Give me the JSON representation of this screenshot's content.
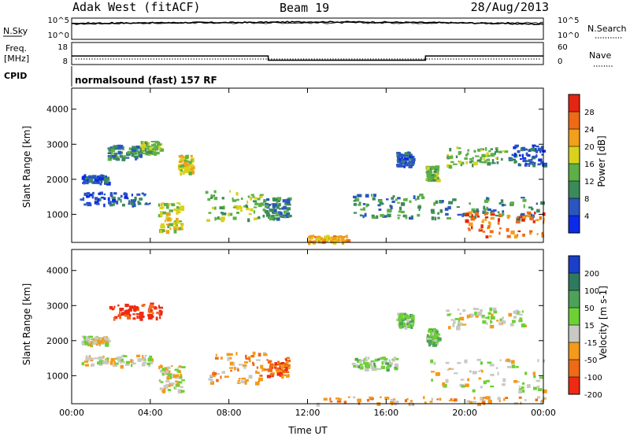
{
  "header": {
    "station": "Adak West (fitACF)",
    "beam": "Beam 19",
    "date": "28/Aug/2013"
  },
  "side_labels": {
    "nsky": "N.Sky",
    "freq_line1": "Freq.",
    "freq_line2": "[MHz]",
    "cpid": "CPID",
    "nsearch": "N.Search",
    "nave": "Nave"
  },
  "cpid_text": "normalsound (fast) 157 RF",
  "chart_data": [
    {
      "type": "line",
      "name": "noise",
      "ylabel": "N.Sky",
      "yticks_left": [
        "10^5",
        "10^0"
      ],
      "yticks_right": [
        "10^5",
        "10^0"
      ],
      "ylabel_right": "N.Search",
      "x": [
        0,
        2,
        4,
        6,
        8,
        10,
        12,
        14,
        16,
        18,
        20,
        22,
        24
      ],
      "series": [
        {
          "values": [
            4.2,
            4.4,
            4.5,
            4.6,
            4.6,
            4.7,
            4.8,
            4.8,
            4.7,
            4.6,
            4.5,
            4.3,
            4.1
          ]
        }
      ]
    },
    {
      "type": "line",
      "name": "frequency",
      "ylabel": "Freq. [MHz]",
      "yticks_left": [
        "18",
        "8"
      ],
      "yticks_right": [
        "60",
        "0"
      ],
      "ylabel_right": "Nave",
      "x": [
        0,
        10,
        10,
        18,
        18,
        24
      ],
      "series": [
        {
          "values": [
            13.5,
            13.5,
            10.5,
            10.5,
            13.5,
            13.5
          ]
        }
      ]
    },
    {
      "type": "heatmap",
      "name": "power",
      "xlabel": "",
      "ylabel": "Slant Range [km]",
      "xlim": [
        0,
        24
      ],
      "ylim": [
        200,
        4600
      ],
      "yticks": [
        "1000",
        "2000",
        "3000",
        "4000"
      ],
      "colorbar_label": "Power [dB]",
      "colorbar_ticks": [
        "4",
        "8",
        "12",
        "16",
        "20",
        "24",
        "28"
      ],
      "colorbar_colors": [
        "#0b2be8",
        "#2b56c0",
        "#3c8a5a",
        "#5cb046",
        "#d9d21c",
        "#f0a01a",
        "#ef6a17",
        "#e32512"
      ],
      "echo_regions": [
        {
          "t0": 0.5,
          "t1": 1.8,
          "r0": 1900,
          "r1": 2150,
          "level": 1
        },
        {
          "t0": 1.8,
          "t1": 3.5,
          "r0": 2600,
          "r1": 3000,
          "level": 2
        },
        {
          "t0": 3.5,
          "t1": 4.5,
          "r0": 2750,
          "r1": 3100,
          "level": 3
        },
        {
          "t0": 4.4,
          "t1": 5.6,
          "r0": 550,
          "r1": 1350,
          "level": 4
        },
        {
          "t0": 5.4,
          "t1": 6.1,
          "r0": 2200,
          "r1": 2700,
          "level": 4
        },
        {
          "t0": 0.4,
          "t1": 4.0,
          "r0": 1300,
          "r1": 1650,
          "level": 1
        },
        {
          "t0": 6.8,
          "t1": 9.8,
          "r0": 850,
          "r1": 1700,
          "level": 3
        },
        {
          "t0": 9.8,
          "t1": 11.0,
          "r0": 900,
          "r1": 1500,
          "level": 2
        },
        {
          "t0": 14.2,
          "t1": 17.8,
          "r0": 900,
          "r1": 1600,
          "level": 2
        },
        {
          "t0": 16.5,
          "t1": 17.3,
          "r0": 2400,
          "r1": 2800,
          "level": 1
        },
        {
          "t0": 18.0,
          "t1": 18.6,
          "r0": 2000,
          "r1": 2400,
          "level": 3
        },
        {
          "t0": 18.2,
          "t1": 24.0,
          "r0": 900,
          "r1": 1500,
          "level": 2
        },
        {
          "t0": 20.0,
          "t1": 24.0,
          "r0": 400,
          "r1": 1100,
          "level": 6
        },
        {
          "t0": 19.0,
          "t1": 22.0,
          "r0": 2400,
          "r1": 2950,
          "level": 3
        },
        {
          "t0": 22.2,
          "t1": 24.0,
          "r0": 2400,
          "r1": 3000,
          "level": 1
        },
        {
          "t0": 12.0,
          "t1": 14.0,
          "r0": 220,
          "r1": 420,
          "level": 5
        }
      ]
    },
    {
      "type": "heatmap",
      "name": "velocity",
      "xlabel": "Time UT",
      "ylabel": "Slant Range [km]",
      "xlim": [
        0,
        24
      ],
      "ylim": [
        200,
        4600
      ],
      "xticks": [
        "00:00",
        "04:00",
        "08:00",
        "12:00",
        "16:00",
        "20:00",
        "00:00"
      ],
      "yticks": [
        "1000",
        "2000",
        "3000",
        "4000"
      ],
      "colorbar_label": "Velocity [m s-1]",
      "colorbar_ticks": [
        "200",
        "100",
        "50",
        "15",
        "-15",
        "-50",
        "-100",
        "-200"
      ],
      "colorbar_colors": [
        "#1a3fc9",
        "#2e7a5e",
        "#4da25a",
        "#6dd035",
        "#c8c8c4",
        "#f39a1a",
        "#ef6a17",
        "#ee2a12"
      ],
      "echo_regions": [
        {
          "t0": 0.5,
          "t1": 1.8,
          "r0": 1900,
          "r1": 2150,
          "level": 4
        },
        {
          "t0": 1.8,
          "t1": 4.5,
          "r0": 2650,
          "r1": 3100,
          "level": 7
        },
        {
          "t0": 4.4,
          "t1": 5.6,
          "r0": 550,
          "r1": 1350,
          "level": 4
        },
        {
          "t0": 0.4,
          "t1": 4.0,
          "r0": 1300,
          "r1": 1600,
          "level": 4
        },
        {
          "t0": 6.8,
          "t1": 9.8,
          "r0": 800,
          "r1": 1700,
          "level": 5
        },
        {
          "t0": 9.8,
          "t1": 11.0,
          "r0": 1000,
          "r1": 1550,
          "level": 6
        },
        {
          "t0": 14.2,
          "t1": 16.5,
          "r0": 1200,
          "r1": 1550,
          "level": 3
        },
        {
          "t0": 16.5,
          "t1": 17.3,
          "r0": 2400,
          "r1": 2800,
          "level": 3
        },
        {
          "t0": 18.0,
          "t1": 18.6,
          "r0": 1900,
          "r1": 2400,
          "level": 3
        },
        {
          "t0": 18.2,
          "t1": 24.0,
          "r0": 600,
          "r1": 1500,
          "level": 4
        },
        {
          "t0": 19.0,
          "t1": 23.0,
          "r0": 2400,
          "r1": 2950,
          "level": 4
        },
        {
          "t0": 12.0,
          "t1": 24.0,
          "r0": 220,
          "r1": 420,
          "level": 5
        }
      ]
    }
  ]
}
